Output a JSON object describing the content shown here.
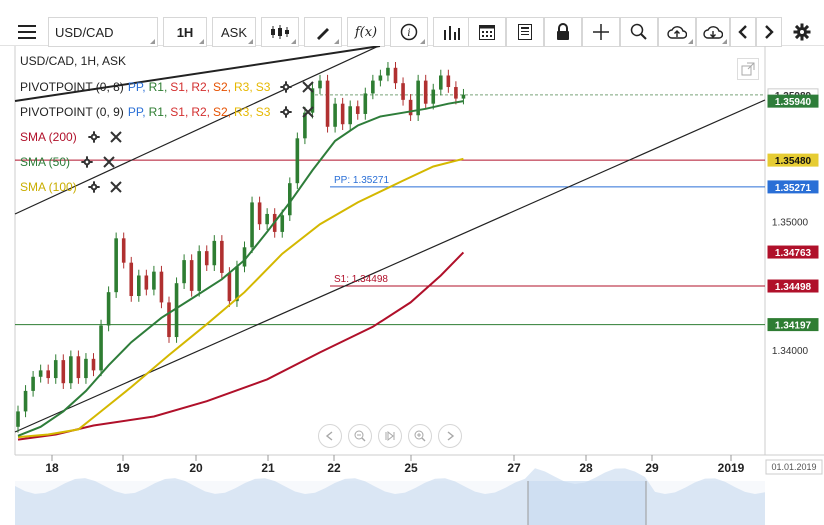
{
  "toolbar": {
    "symbol": "USD/CAD",
    "timeframe": "1H",
    "price_type": "ASK",
    "fx_label": "f(x)"
  },
  "chart_header": {
    "title": "USD/CAD, 1H, ASK"
  },
  "indicators": [
    {
      "name": "PIVOTPOINT (0, 8)",
      "items": [
        "PP,",
        "R1,",
        "S1,",
        "R2,",
        "S2,",
        "R3,",
        "S3"
      ],
      "colors": [
        "#2a6fd6",
        "#2e7d32",
        "#d32f2f",
        "#d32f2f",
        "#e65100",
        "#e6b800",
        "#e6b800"
      ]
    },
    {
      "name": "PIVOTPOINT (0, 9)",
      "items": [
        "PP,",
        "R1,",
        "S1,",
        "R2,",
        "S2,",
        "R3,",
        "S3"
      ],
      "colors": [
        "#2a6fd6",
        "#2e7d32",
        "#d32f2f",
        "#d32f2f",
        "#e65100",
        "#e6b800",
        "#e6b800"
      ]
    },
    {
      "name": "SMA (200)",
      "color": "#b0102a"
    },
    {
      "name": "SMA (50)",
      "color": "#2e7d3a"
    },
    {
      "name": "SMA (100)",
      "color": "#d4b800"
    }
  ],
  "chart_data": {
    "type": "line",
    "title": "USD/CAD, 1H, ASK",
    "x_ticks": [
      "18",
      "19",
      "20",
      "21",
      "22",
      "25",
      "27",
      "28",
      "29",
      "2019"
    ],
    "x_ticks_highlight": [
      "2019"
    ],
    "date_box": "01.01.2019",
    "y_ticks": [
      "1.34000",
      "1.35000"
    ],
    "ylim": [
      1.3318,
      1.3637
    ],
    "price_labels": [
      {
        "text": "1.35989",
        "value": 1.35989,
        "bg": "#ffffff",
        "fg": "#333333"
      },
      {
        "text": "1.35940",
        "value": 1.3594,
        "bg": "#2e7d3a",
        "fg": "#ffffff"
      },
      {
        "text": "1.35480",
        "value": 1.3548,
        "bg": "#e6cc33",
        "fg": "#111111"
      },
      {
        "text": "1.35271",
        "value": 1.35271,
        "bg": "#2a6fd6",
        "fg": "#ffffff"
      },
      {
        "text": "1.34763",
        "value": 1.34763,
        "bg": "#b0102a",
        "fg": "#ffffff"
      },
      {
        "text": "1.34498",
        "value": 1.34498,
        "bg": "#b0102a",
        "fg": "#ffffff"
      },
      {
        "text": "1.34197",
        "value": 1.34197,
        "bg": "#2e7d32",
        "fg": "#ffffff"
      }
    ],
    "pivot_labels": [
      {
        "text": "PP: 1.35271",
        "value": 1.35271,
        "color": "#2a6fd6"
      },
      {
        "text": "S1: 1.34498",
        "value": 1.34498,
        "color": "#b0102a"
      }
    ],
    "horizontal_lines": [
      {
        "name": "R1",
        "value": 1.3548,
        "color": "#b0102a"
      },
      {
        "name": "PP",
        "value": 1.35271,
        "color": "#2a6fd6"
      },
      {
        "name": "S1",
        "value": 1.34498,
        "color": "#b0102a"
      },
      {
        "name": "S2",
        "value": 1.34197,
        "color": "#2e7d32"
      },
      {
        "name": "last",
        "value": 1.35989,
        "color": "#7aa37a"
      }
    ],
    "series": [
      {
        "name": "SMA (200)",
        "color": "#b0102a",
        "points": [
          [
            0,
            1.333
          ],
          [
            5,
            1.3334
          ],
          [
            10,
            1.3341
          ],
          [
            18,
            1.3348
          ],
          [
            25,
            1.336
          ],
          [
            33,
            1.3377
          ],
          [
            40,
            1.3398
          ],
          [
            47,
            1.3418
          ],
          [
            52,
            1.3437
          ],
          [
            56,
            1.3458
          ],
          [
            59,
            1.3476
          ]
        ]
      },
      {
        "name": "SMA (100)",
        "color": "#d4b800",
        "points": [
          [
            0,
            1.3332
          ],
          [
            4,
            1.3334
          ],
          [
            8,
            1.3338
          ],
          [
            11,
            1.3352
          ],
          [
            15,
            1.3371
          ],
          [
            20,
            1.3396
          ],
          [
            25,
            1.342
          ],
          [
            30,
            1.3445
          ],
          [
            35,
            1.3475
          ],
          [
            40,
            1.3498
          ],
          [
            45,
            1.3515
          ],
          [
            51,
            1.3532
          ],
          [
            55,
            1.3543
          ],
          [
            59,
            1.3549
          ]
        ]
      },
      {
        "name": "SMA (50)",
        "color": "#2e7d3a",
        "points": [
          [
            0,
            1.3333
          ],
          [
            3,
            1.334
          ],
          [
            6,
            1.3352
          ],
          [
            9,
            1.3368
          ],
          [
            12,
            1.3388
          ],
          [
            15,
            1.3406
          ],
          [
            19,
            1.3425
          ],
          [
            23,
            1.344
          ],
          [
            27,
            1.3455
          ],
          [
            30,
            1.347
          ],
          [
            33,
            1.3492
          ],
          [
            36,
            1.3515
          ],
          [
            39,
            1.354
          ],
          [
            42,
            1.3563
          ],
          [
            45,
            1.3575
          ],
          [
            48,
            1.3582
          ],
          [
            51,
            1.3585
          ],
          [
            54,
            1.3588
          ],
          [
            57,
            1.3592
          ],
          [
            59,
            1.3594
          ]
        ]
      }
    ],
    "candles": [
      [
        1.334,
        1.3352
      ],
      [
        1.3352,
        1.3368
      ],
      [
        1.3368,
        1.3379
      ],
      [
        1.3379,
        1.3384
      ],
      [
        1.3384,
        1.3378
      ],
      [
        1.3378,
        1.3392
      ],
      [
        1.3392,
        1.3374
      ],
      [
        1.3374,
        1.3395
      ],
      [
        1.3395,
        1.3378
      ],
      [
        1.3378,
        1.3393
      ],
      [
        1.3393,
        1.3384
      ],
      [
        1.3384,
        1.3419
      ],
      [
        1.3419,
        1.3445
      ],
      [
        1.3445,
        1.3487
      ],
      [
        1.3487,
        1.3468
      ],
      [
        1.3468,
        1.3442
      ],
      [
        1.3442,
        1.3458
      ],
      [
        1.3458,
        1.3447
      ],
      [
        1.3447,
        1.3461
      ],
      [
        1.3461,
        1.3437
      ],
      [
        1.3437,
        1.341
      ],
      [
        1.341,
        1.3452
      ],
      [
        1.3452,
        1.347
      ],
      [
        1.347,
        1.3446
      ],
      [
        1.3446,
        1.3477
      ],
      [
        1.3477,
        1.3466
      ],
      [
        1.3466,
        1.3485
      ],
      [
        1.3485,
        1.346
      ],
      [
        1.346,
        1.3438
      ],
      [
        1.3438,
        1.3465
      ],
      [
        1.3465,
        1.348
      ],
      [
        1.348,
        1.3515
      ],
      [
        1.3515,
        1.3498
      ],
      [
        1.3498,
        1.3506
      ],
      [
        1.3506,
        1.3492
      ],
      [
        1.3492,
        1.3505
      ],
      [
        1.3505,
        1.353
      ],
      [
        1.353,
        1.3565
      ],
      [
        1.3565,
        1.3585
      ],
      [
        1.3585,
        1.3604
      ],
      [
        1.3604,
        1.361
      ],
      [
        1.361,
        1.3574
      ],
      [
        1.3574,
        1.3592
      ],
      [
        1.3592,
        1.3576
      ],
      [
        1.3576,
        1.359
      ],
      [
        1.359,
        1.3584
      ],
      [
        1.3584,
        1.36
      ],
      [
        1.36,
        1.361
      ],
      [
        1.361,
        1.3614
      ],
      [
        1.3614,
        1.362
      ],
      [
        1.362,
        1.3608
      ],
      [
        1.3608,
        1.3595
      ],
      [
        1.3595,
        1.3583
      ],
      [
        1.3583,
        1.361
      ],
      [
        1.361,
        1.3592
      ],
      [
        1.3592,
        1.3603
      ],
      [
        1.3603,
        1.3614
      ],
      [
        1.3614,
        1.3605
      ],
      [
        1.3605,
        1.3596
      ],
      [
        1.3596,
        1.3599
      ]
    ]
  }
}
